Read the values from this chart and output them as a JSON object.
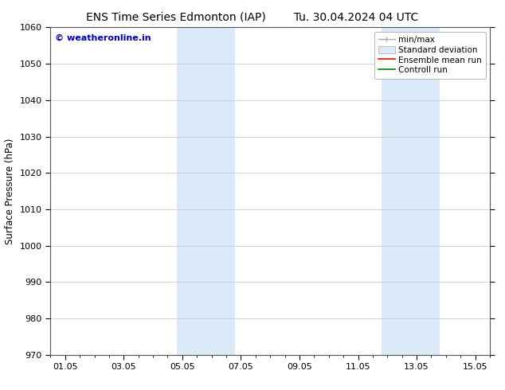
{
  "title_left": "ENS Time Series Edmonton (IAP)",
  "title_right": "Tu. 30.04.2024 04 UTC",
  "ylabel": "Surface Pressure (hPa)",
  "ylim": [
    970,
    1060
  ],
  "yticks": [
    970,
    980,
    990,
    1000,
    1010,
    1020,
    1030,
    1040,
    1050,
    1060
  ],
  "xtick_labels": [
    "01.05",
    "03.05",
    "05.05",
    "07.05",
    "09.05",
    "11.05",
    "13.05",
    "15.05"
  ],
  "xtick_positions": [
    0,
    2,
    4,
    6,
    8,
    10,
    12,
    14
  ],
  "xlim": [
    -0.5,
    14.5
  ],
  "shaded_regions": [
    {
      "xmin": 3.8,
      "xmax": 5.8,
      "color": "#daeaf8"
    },
    {
      "xmin": 10.8,
      "xmax": 12.8,
      "color": "#daeaf8"
    }
  ],
  "watermark": "© weatheronline.in",
  "watermark_color": "#0000bb",
  "background_color": "#ffffff",
  "grid_color": "#cccccc",
  "title_fontsize": 10,
  "ylabel_fontsize": 8.5,
  "tick_fontsize": 8,
  "legend_fontsize": 7.5,
  "watermark_fontsize": 8
}
